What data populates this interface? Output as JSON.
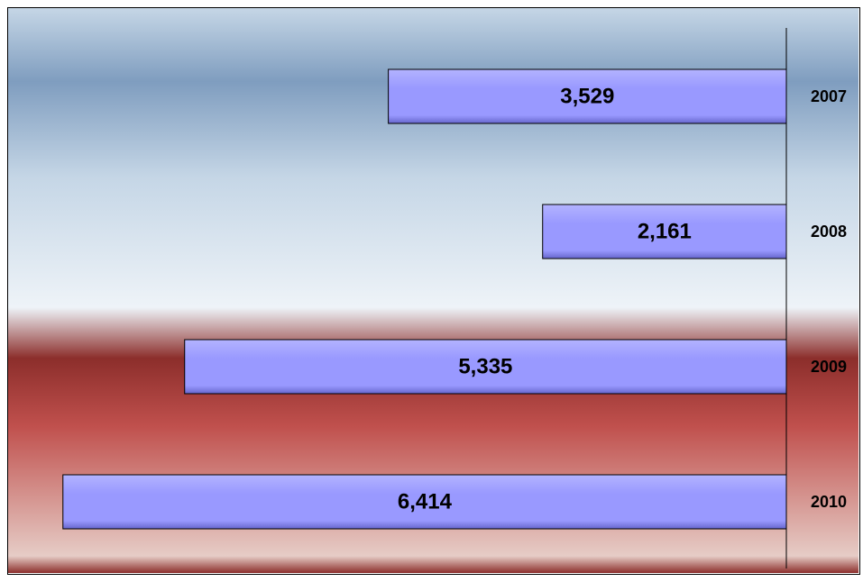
{
  "chart_data": {
    "type": "bar",
    "orientation": "horizontal",
    "direction": "right-to-left",
    "categories": [
      "2007",
      "2008",
      "2009",
      "2010"
    ],
    "values": [
      3529,
      2161,
      5335,
      6414
    ],
    "value_labels": [
      "3,529",
      "2,161",
      "5,335",
      "6,414"
    ],
    "category_axis_position": "right",
    "xlim": [
      0,
      6900
    ],
    "grid": false,
    "legend": "none",
    "colors": {
      "bar_fill": "#9999ff",
      "bar_highlight": "#b3b3ff",
      "bar_shadow": "#6666cc",
      "bar_border": "#000000",
      "background_top": "#c5d6e6",
      "background_blue": "#7f9dbf",
      "background_light": "#eef3f8",
      "background_red": "#8c2e2b",
      "background_red_mid": "#c0504d",
      "background_bottom": "#e6ccc6"
    }
  }
}
